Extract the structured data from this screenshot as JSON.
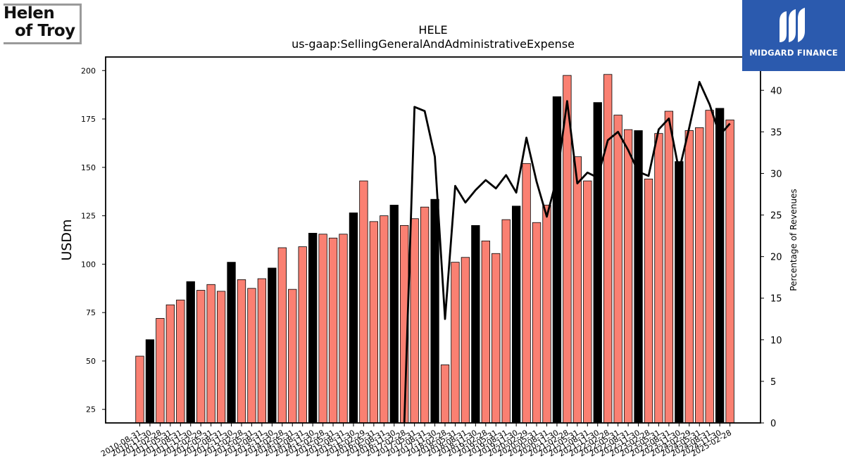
{
  "branding": {
    "left_logo_line1": "Helen",
    "left_logo_line2": "of Troy",
    "right_logo_text": "MIDGARD FINANCE"
  },
  "chart_data": {
    "type": "bar",
    "title": "HELE",
    "subtitle": "us-gaap:SellingGeneralAndAdministrativeExpense",
    "ylabel": "USDm",
    "y2label": "Percentage of Revenues",
    "ylim": [
      18,
      207
    ],
    "y2lim": [
      0,
      44
    ],
    "yticks": [
      25,
      50,
      75,
      100,
      125,
      150,
      175,
      200
    ],
    "y2ticks": [
      0,
      5,
      10,
      15,
      20,
      25,
      30,
      35,
      40
    ],
    "colors": {
      "bar": "#fa8072",
      "bar_highlight": "#000000",
      "line": "#000000"
    },
    "tick_labels": [
      "2010-08-31",
      "2010-11-30",
      "2011-02-28",
      "2011-05-31",
      "2011-08-31",
      "2011-11-30",
      "2012-02-29",
      "2012-05-31",
      "2012-08-31",
      "2012-11-30",
      "2013-02-28",
      "2013-05-31",
      "2013-08-31",
      "2013-11-30",
      "2014-02-28",
      "2014-05-31",
      "2014-08-31",
      "2014-11-30",
      "2015-02-28",
      "2015-05-31",
      "2015-08-31",
      "2015-11-30",
      "2016-02-29",
      "2016-05-31",
      "2016-08-31",
      "2016-11-30",
      "2017-02-28",
      "2017-05-31",
      "2017-08-31",
      "2017-11-30",
      "2018-02-28",
      "2018-05-31",
      "2018-08-31",
      "2018-11-30",
      "2019-02-28",
      "2019-05-31",
      "2019-08-31",
      "2019-11-30",
      "2020-02-29",
      "2020-05-31",
      "2020-08-31",
      "2020-11-30",
      "2021-02-28",
      "2021-05-31",
      "2021-08-31",
      "2021-11-30",
      "2022-02-28",
      "2022-05-31",
      "2022-08-31",
      "2022-11-30",
      "2023-02-28",
      "2023-05-31",
      "2023-08-31",
      "2023-11-30",
      "2024-02-29",
      "2024-05-31",
      "2024-08-31",
      "2024-11-30",
      "2025-02-28"
    ],
    "series": [
      {
        "values": [
          52.5,
          61,
          72,
          79,
          81.5,
          91,
          86.5,
          89.5,
          86,
          101,
          92,
          87.5,
          92.5,
          98,
          108.5,
          87,
          109,
          116,
          115.5,
          113.5,
          115.5,
          126.5,
          143,
          122,
          125,
          130.5,
          120,
          123.5,
          129.5,
          133.5,
          48,
          101,
          103.5,
          120,
          112,
          105.5,
          123,
          130,
          152,
          121.5,
          130.5,
          186.5,
          197.5,
          155.5,
          143,
          183.5,
          198,
          177,
          169.5,
          169,
          144,
          167.5,
          179,
          153,
          169,
          170.5,
          179.5,
          180.5,
          174.5
        ],
        "highlight": [
          false,
          true,
          false,
          false,
          false,
          true,
          false,
          false,
          false,
          true,
          false,
          false,
          false,
          true,
          false,
          false,
          false,
          true,
          false,
          false,
          false,
          true,
          false,
          false,
          false,
          true,
          false,
          false,
          false,
          true,
          false,
          false,
          false,
          true,
          false,
          false,
          false,
          true,
          false,
          false,
          false,
          true,
          false,
          false,
          false,
          true,
          false,
          false,
          false,
          true,
          false,
          false,
          false,
          true,
          false,
          false,
          false,
          true,
          false
        ]
      },
      {
        "name": "Percentage of Revenues",
        "values": [
          null,
          null,
          null,
          null,
          null,
          null,
          null,
          null,
          null,
          null,
          null,
          null,
          null,
          null,
          null,
          null,
          null,
          null,
          null,
          null,
          null,
          null,
          null,
          null,
          null,
          null,
          0,
          38,
          37.5,
          32,
          12.5,
          28.5,
          26.5,
          28,
          29.2,
          28.2,
          29.8,
          27.7,
          34.3,
          29,
          24.8,
          29.5,
          38.7,
          28.8,
          30.1,
          29.5,
          34,
          35,
          32.8,
          30.2,
          29.7,
          35.3,
          36.6,
          30.3,
          35.5,
          41,
          38.3,
          34.6,
          36
        ]
      }
    ]
  }
}
